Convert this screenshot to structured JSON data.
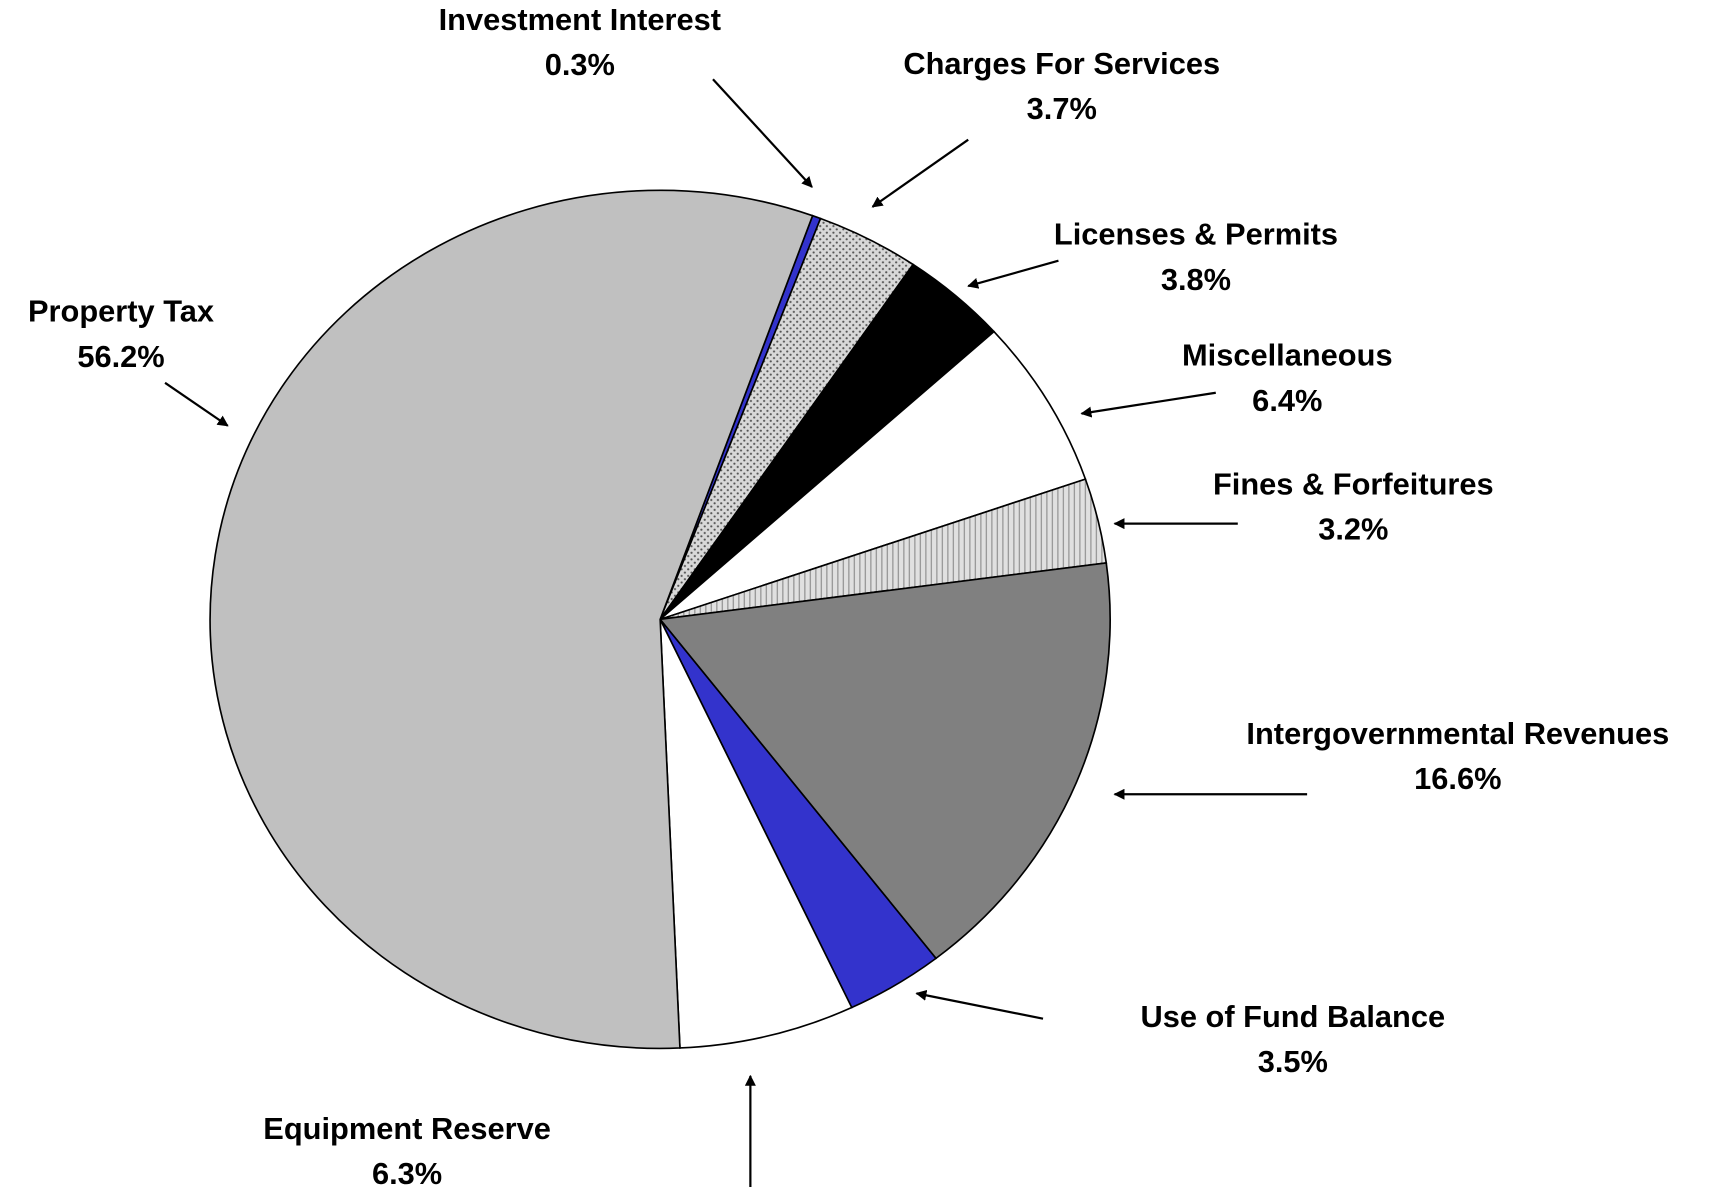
{
  "chart_data": {
    "type": "pie",
    "categories": [
      "Investment Interest",
      "Charges For Services",
      "Licenses & Permits",
      "Miscellaneous",
      "Fines & Forfeitures",
      "Intergovernmental Revenues",
      "Use of Fund Balance",
      "Equipment Reserve",
      "Property Tax"
    ],
    "values": [
      0.3,
      3.7,
      3.8,
      6.4,
      3.2,
      16.6,
      3.5,
      6.3,
      56.2
    ],
    "value_labels": [
      "0.3%",
      "3.7%",
      "3.8%",
      "6.4%",
      "3.2%",
      "16.6%",
      "3.5%",
      "6.3%",
      "56.2%"
    ],
    "colors": [
      "#3333cc",
      "url(#dots)",
      "#000000",
      "#ffffff",
      "url(#stripes)",
      "#808080",
      "#3333cc",
      "#ffffff",
      "#c0c0c0"
    ]
  }
}
